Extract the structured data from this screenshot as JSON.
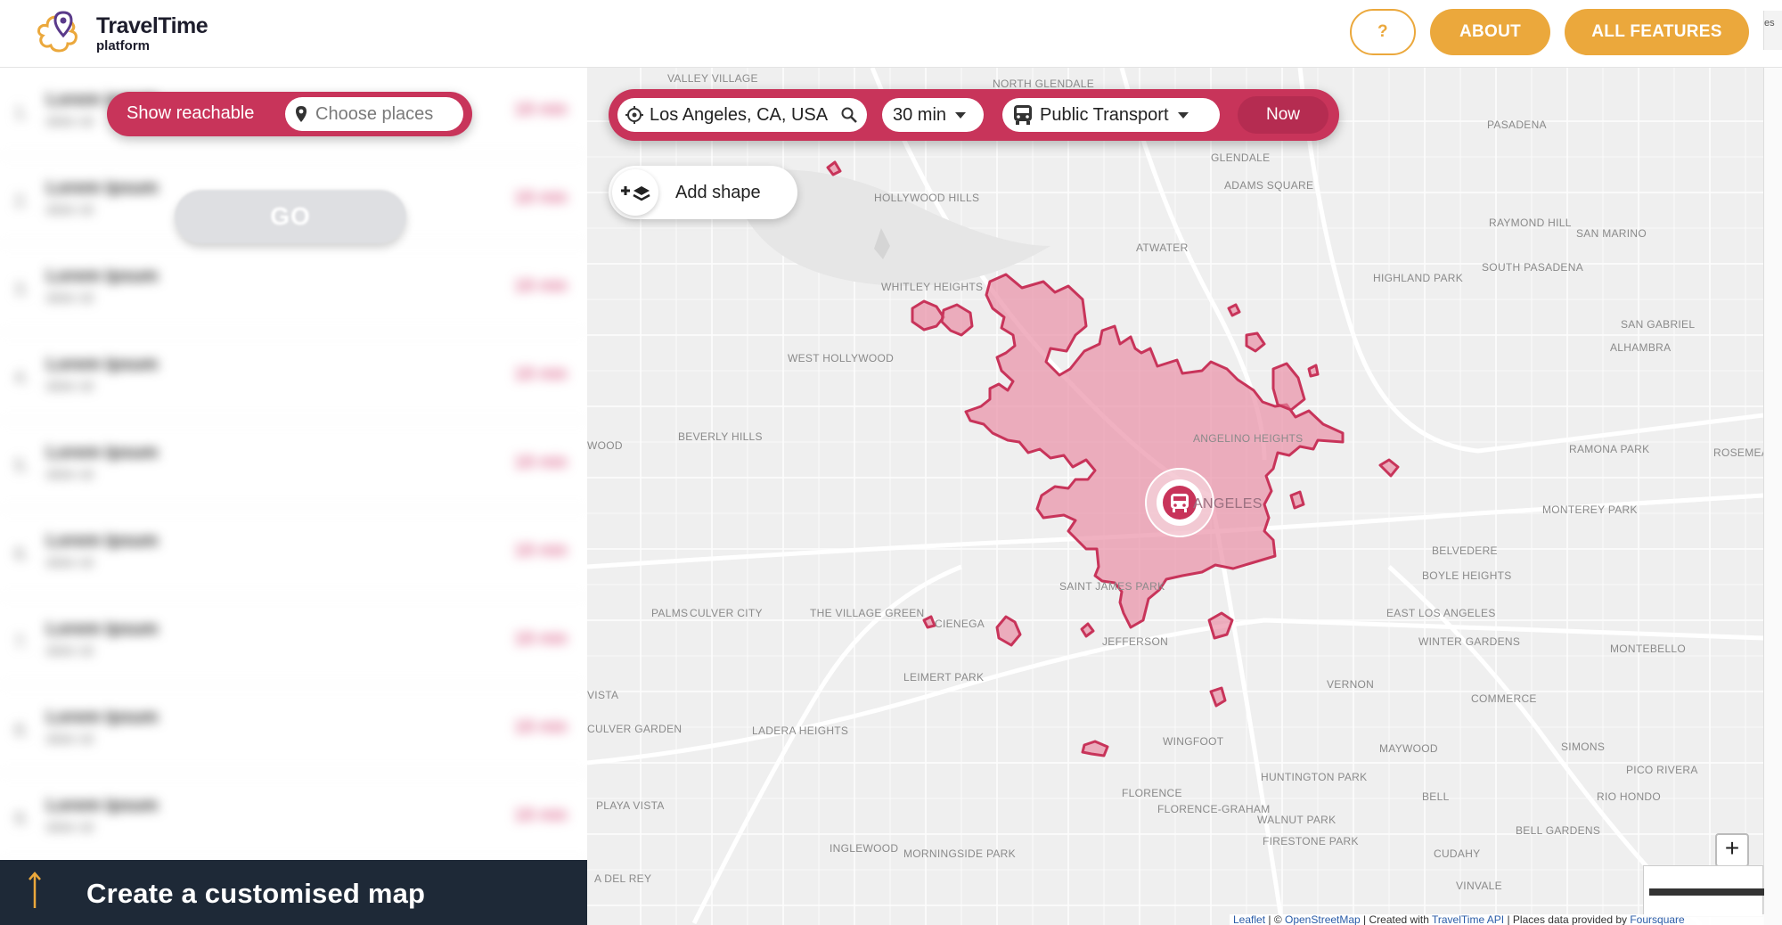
{
  "header": {
    "logo_title": "TravelTime",
    "logo_subtitle": "platform",
    "help_label": "?",
    "about_label": "ABOUT",
    "all_features_label": "ALL FEATURES",
    "edge_tab_text": "es"
  },
  "sidebar": {
    "show_reachable_label": "Show reachable",
    "places_placeholder": "Choose places",
    "go_label": "GO",
    "results": [
      {
        "num": "1.",
        "title": "Lorem Ipsum",
        "sub": "dolor sit",
        "mins": "18 min"
      },
      {
        "num": "2.",
        "title": "Lorem Ipsum",
        "sub": "dolor sit",
        "mins": "18 min"
      },
      {
        "num": "3.",
        "title": "Lorem Ipsum",
        "sub": "dolor sit",
        "mins": "18 min"
      },
      {
        "num": "4.",
        "title": "Lorem Ipsum",
        "sub": "dolor sit",
        "mins": "18 min"
      },
      {
        "num": "5.",
        "title": "Lorem Ipsum",
        "sub": "dolor sit",
        "mins": "18 min"
      },
      {
        "num": "6.",
        "title": "Lorem Ipsum",
        "sub": "dolor sit",
        "mins": "18 min"
      },
      {
        "num": "7.",
        "title": "Lorem Ipsum",
        "sub": "dolor sit",
        "mins": "18 min"
      },
      {
        "num": "8.",
        "title": "Lorem Ipsum",
        "sub": "dolor sit",
        "mins": "18 min"
      },
      {
        "num": "9.",
        "title": "Lorem Ipsum",
        "sub": "dolor sit",
        "mins": "18 min"
      }
    ],
    "cta_label": "Create a customised map",
    "cta_icon": "arrow-up-icon"
  },
  "search": {
    "location_value": "Los Angeles, CA, USA",
    "duration_value": "30 min",
    "mode_value": "Public Transport",
    "time_label": "Now"
  },
  "add_shape_label": "Add shape",
  "zoom_in_label": "+",
  "attribution": {
    "leaflet": "Leaflet",
    "sep1": " | © ",
    "osm": "OpenStreetMap",
    "sep2": " | Created with ",
    "tt_api": "TravelTime API",
    "sep3": " | Places data provided by ",
    "foursquare": "Foursquare"
  },
  "map_labels": [
    "VALLEY VILLAGE",
    "NORTH GLENDALE",
    "PASADENA",
    "GLENDALE",
    "HOLLYWOOD HILLS",
    "ADAMS SQUARE",
    "RAYMOND HILL",
    "SAN MARINO",
    "ATWATER",
    "SOUTH PASADENA",
    "HIGHLAND PARK",
    "WHITLEY HEIGHTS",
    "SAN GABRIEL",
    "ALHAMBRA",
    "WEST HOLLYWOOD",
    "ANGELINO HEIGHTS",
    "RAMONA PARK",
    "BEVERLY HILLS",
    "ROSEMEAD",
    "MONTEREY PARK",
    "BELVEDERE",
    "BOYLE HEIGHTS",
    "EAST LOS ANGELES",
    "PALMS",
    "CULVER CITY",
    "THE VILLAGE GREEN",
    "CIENEGA",
    "WINTER GARDENS",
    "MONTEBELLO",
    "LEIMERT PARK",
    "VERNON",
    "COMMERCE",
    "LADERA HEIGHTS",
    "CULVER GARDEN",
    "WINGFOOT",
    "MAYWOOD",
    "SIMONS",
    "PICO RIVERA",
    "HUNTINGTON PARK",
    "FLORENCE",
    "BELL",
    "RIO HONDO",
    "PLAYA VISTA",
    "FLORENCE-GRAHAM",
    "WALNUT PARK",
    "BELL GARDENS",
    "FIRESTONE PARK",
    "CUDAHY",
    "INGLEWOOD",
    "MORNINGSIDE PARK",
    "VINVALE",
    "A DEL REY",
    "ANGELES",
    "JEFFERSON",
    "SAINT JAMES PARK",
    "WOOD",
    "VISTA"
  ],
  "colors": {
    "accent_orange": "#eba83c",
    "brand_pink": "#c8345a",
    "isochrone_fill": "#e8879f",
    "cta_bg": "#1e2937"
  }
}
